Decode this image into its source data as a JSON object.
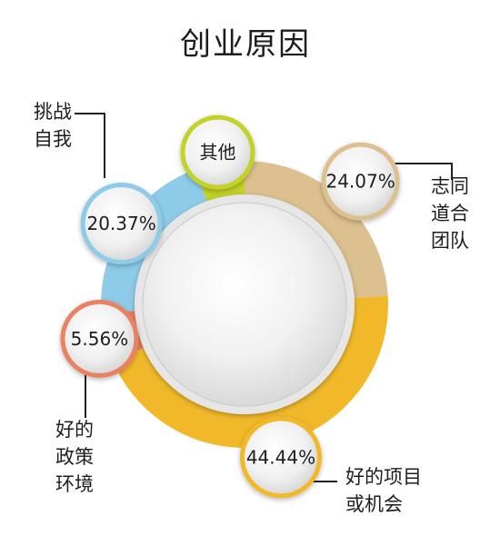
{
  "chart_data": {
    "type": "pie",
    "title": "创业原因",
    "slices": [
      {
        "name": "志同道合团队",
        "label_lines": [
          "志同",
          "道合",
          "团队"
        ],
        "value": 24.07,
        "value_label": "24.07%",
        "color": "#dcc08f"
      },
      {
        "name": "好的项目或机会",
        "label_lines": [
          "好的项目",
          "或机会"
        ],
        "value": 44.44,
        "value_label": "44.44%",
        "color": "#f1b92a"
      },
      {
        "name": "好的政策环境",
        "label_lines": [
          "好的",
          "政策",
          "环境"
        ],
        "value": 5.56,
        "value_label": "5.56%",
        "color": "#e98262"
      },
      {
        "name": "挑战自我",
        "label_lines": [
          "挑战",
          "自我"
        ],
        "value": 20.37,
        "value_label": "20.37%",
        "color": "#8ecbe9"
      },
      {
        "name": "其他",
        "label_lines": [],
        "value": 5.56,
        "value_label": "其他",
        "color": "#c2d225"
      }
    ]
  }
}
